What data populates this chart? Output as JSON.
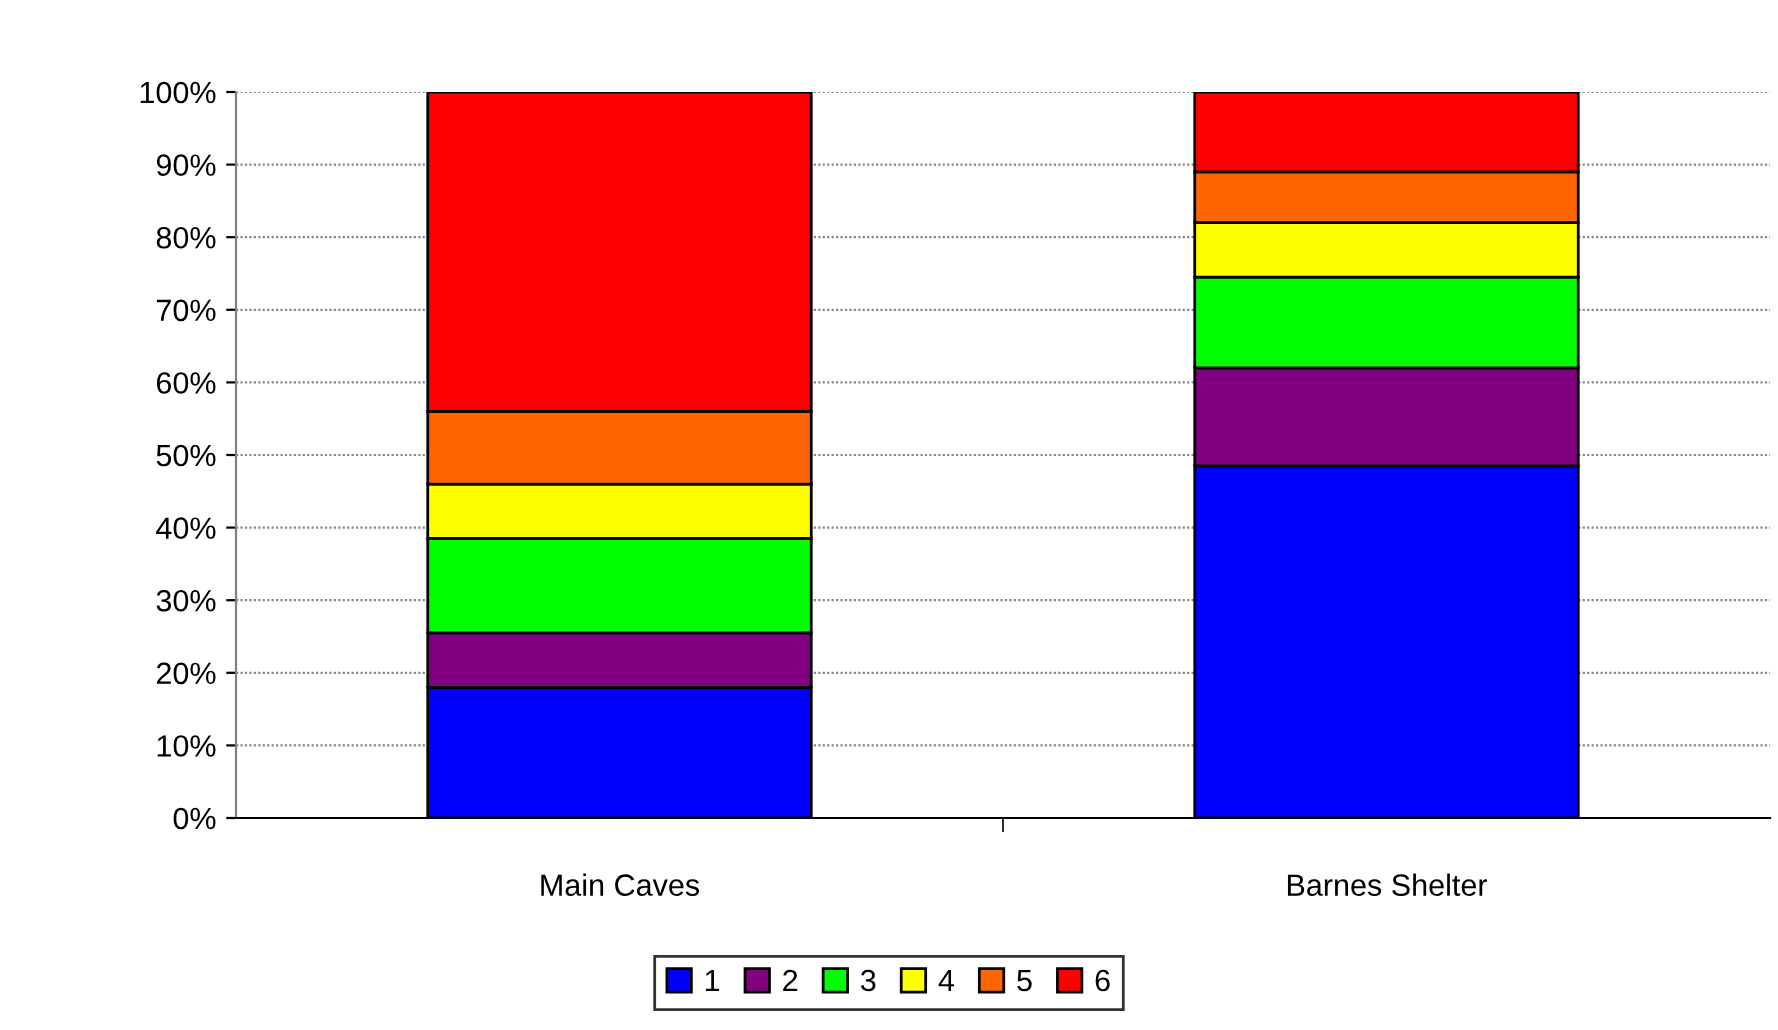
{
  "chart_data": {
    "type": "bar",
    "stacked": true,
    "categories": [
      "Main Caves",
      "Barnes Shelter"
    ],
    "series": [
      {
        "name": "1",
        "color": "#0000ff",
        "values": [
          18,
          48.5
        ]
      },
      {
        "name": "2",
        "color": "#800080",
        "values": [
          7.5,
          13.5
        ]
      },
      {
        "name": "3",
        "color": "#00ff00",
        "values": [
          13,
          12.5
        ]
      },
      {
        "name": "4",
        "color": "#ffff00",
        "values": [
          7.5,
          7.5
        ]
      },
      {
        "name": "5",
        "color": "#ff6600",
        "values": [
          10,
          7
        ]
      },
      {
        "name": "6",
        "color": "#ff0000",
        "values": [
          44,
          11
        ]
      }
    ],
    "ylim": [
      0,
      100
    ],
    "yticks": [
      {
        "value": 0,
        "label": "0%"
      },
      {
        "value": 10,
        "label": "10%"
      },
      {
        "value": 20,
        "label": "20%"
      },
      {
        "value": 30,
        "label": "30%"
      },
      {
        "value": 40,
        "label": "40%"
      },
      {
        "value": 50,
        "label": "50%"
      },
      {
        "value": 60,
        "label": "60%"
      },
      {
        "value": 70,
        "label": "70%"
      },
      {
        "value": 80,
        "label": "80%"
      },
      {
        "value": 90,
        "label": "90%"
      },
      {
        "value": 100,
        "label": "100%"
      }
    ],
    "grid": "y",
    "legend": "bottom"
  }
}
